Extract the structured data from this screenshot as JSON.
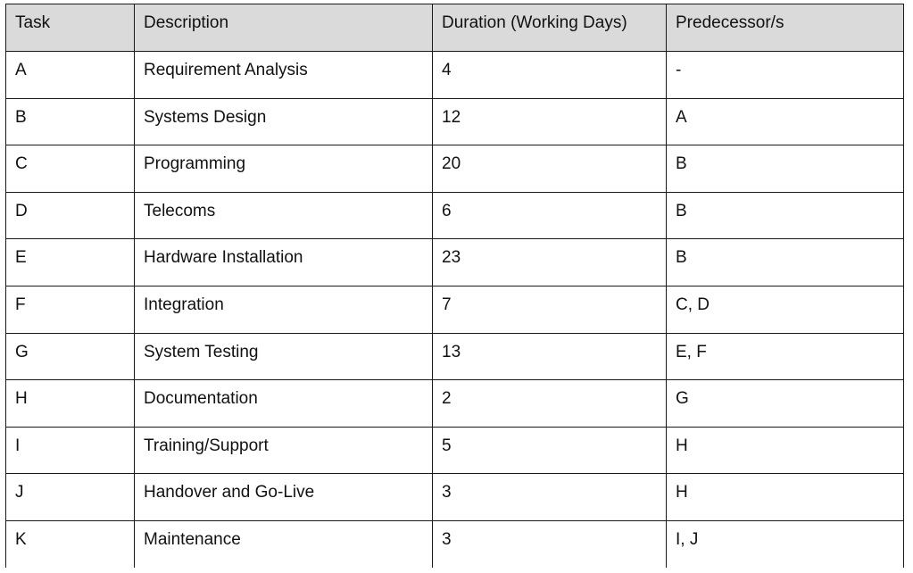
{
  "table": {
    "headers": [
      "Task",
      "Description",
      "Duration (Working Days)",
      "Predecessor/s"
    ],
    "rows": [
      [
        "A",
        "Requirement Analysis",
        "4",
        "-"
      ],
      [
        "B",
        "Systems Design",
        "12",
        "A"
      ],
      [
        "C",
        "Programming",
        "20",
        "B"
      ],
      [
        "D",
        "Telecoms",
        "6",
        "B"
      ],
      [
        "E",
        "Hardware Installation",
        "23",
        "B"
      ],
      [
        "F",
        "Integration",
        "7",
        "C, D"
      ],
      [
        "G",
        "System Testing",
        "13",
        "E, F"
      ],
      [
        "H",
        "Documentation",
        "2",
        "G"
      ],
      [
        "I",
        "Training/Support",
        "5",
        "H"
      ],
      [
        "J",
        "Handover and Go-Live",
        "3",
        "H"
      ],
      [
        "K",
        "Maintenance",
        "3",
        "I, J"
      ]
    ]
  },
  "colors": {
    "header_background": "#dadada",
    "border": "#1a1a1a",
    "text": "#111111"
  }
}
